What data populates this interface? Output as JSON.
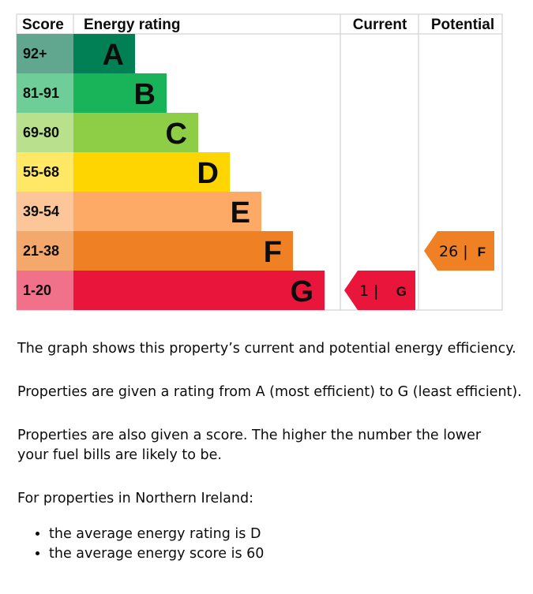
{
  "chart_data": {
    "type": "table",
    "title": "",
    "headers": {
      "score": "Score",
      "rating": "Energy rating",
      "current": "Current",
      "potential": "Potential"
    },
    "bands": [
      {
        "letter": "A",
        "range": "92+",
        "color": "#008054",
        "range_color": "#61a68e"
      },
      {
        "letter": "B",
        "range": "81-91",
        "color": "#19b459",
        "range_color": "#6fce97"
      },
      {
        "letter": "C",
        "range": "69-80",
        "color": "#8dce46",
        "range_color": "#b8e08d"
      },
      {
        "letter": "D",
        "range": "55-68",
        "color": "#ffd500",
        "range_color": "#ffe866"
      },
      {
        "letter": "E",
        "range": "39-54",
        "color": "#fcaa65",
        "range_color": "#fdc698"
      },
      {
        "letter": "F",
        "range": "21-38",
        "color": "#ef8023",
        "range_color": "#f4a86b"
      },
      {
        "letter": "G",
        "range": "1-20",
        "color": "#e9153b",
        "range_color": "#f1708a"
      }
    ],
    "current": {
      "score": 1,
      "score_text": "1 |",
      "band": "G",
      "color": "#e9153b"
    },
    "potential": {
      "score": 26,
      "score_text": "26 |",
      "band": "F",
      "color": "#ef8023"
    }
  },
  "description": {
    "line1": "The graph shows this property’s current and potential energy efficiency.",
    "line2": "Properties are given a rating from A (most efficient) to G (least efficient).",
    "line3": "Properties are also given a score. The higher the number the lower your fuel bills are likely to be.",
    "line4": "For properties in Northern Ireland:",
    "averages": [
      "the average energy rating is D",
      "the average energy score is 60"
    ]
  }
}
